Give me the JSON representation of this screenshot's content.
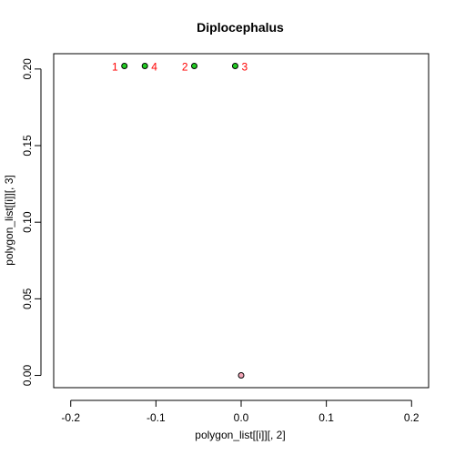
{
  "chart_data": {
    "type": "scatter",
    "title": "Diplocephalus",
    "xlabel": "polygon_list[[i]][, 2]",
    "ylabel": "polygon_list[[i]][, 3]",
    "xlim": [
      -0.22,
      0.22
    ],
    "ylim": [
      -0.008,
      0.21
    ],
    "xticks": [
      -0.2,
      -0.1,
      0.0,
      0.1,
      0.2
    ],
    "xtick_labels": [
      "-0.2",
      "-0.1",
      "0.0",
      "0.1",
      "0.2"
    ],
    "yticks": [
      0.0,
      0.05,
      0.1,
      0.15,
      0.2
    ],
    "ytick_labels": [
      "0.00",
      "0.05",
      "0.10",
      "0.15",
      "0.20"
    ],
    "grid": false,
    "points": [
      {
        "x": -0.137,
        "y": 0.202,
        "fill": "#22cc22",
        "label": "1",
        "label_side": "left"
      },
      {
        "x": -0.113,
        "y": 0.202,
        "fill": "#22cc22",
        "label": "4",
        "label_side": "right"
      },
      {
        "x": -0.055,
        "y": 0.202,
        "fill": "#22cc22",
        "label": "2",
        "label_side": "left"
      },
      {
        "x": -0.007,
        "y": 0.202,
        "fill": "#22cc22",
        "label": "3",
        "label_side": "right"
      },
      {
        "x": 0.0,
        "y": 0.0,
        "fill": "#f4a6b8",
        "label": "",
        "label_side": "none"
      }
    ],
    "label_color": "#ff0000"
  }
}
